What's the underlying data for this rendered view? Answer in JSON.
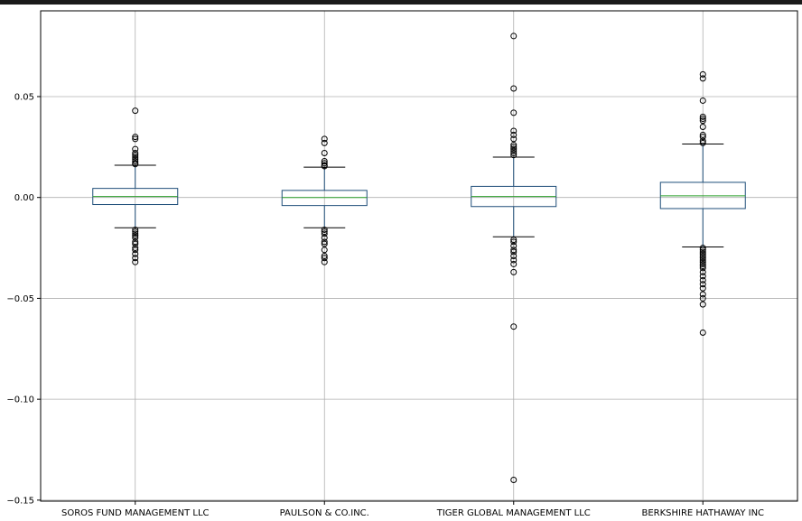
{
  "chart_data": {
    "type": "boxplot",
    "categories": [
      "SOROS FUND MANAGEMENT LLC",
      "PAULSON & CO.INC.",
      "TIGER GLOBAL MANAGEMENT LLC",
      "BERKSHIRE HATHAWAY INC"
    ],
    "y_ticks": [
      {
        "value": 0.05,
        "label": "0.05"
      },
      {
        "value": 0.0,
        "label": "0.00"
      },
      {
        "value": -0.05,
        "label": "−0.05"
      },
      {
        "value": -0.1,
        "label": "−0.10"
      },
      {
        "value": -0.15,
        "label": "−0.15"
      }
    ],
    "ylim": [
      -0.1505,
      0.0925
    ],
    "grid": true,
    "title": "",
    "xlabel": "",
    "ylabel": "",
    "colors": {
      "box": "#1f4e79",
      "median": "#2ca02c",
      "whisker": "#1f4e79",
      "cap": "#000000",
      "flier": "#000000",
      "grid": "#b0b0b0",
      "axes": "#000000",
      "background": "#ffffff"
    },
    "boxes": [
      {
        "name": "SOROS FUND MANAGEMENT LLC",
        "q1": -0.0035,
        "median": 0.0005,
        "q3": 0.0045,
        "whisker_low": -0.015,
        "whisker_high": 0.016,
        "fliers": [
          0.043,
          0.03,
          0.029,
          0.024,
          0.022,
          0.021,
          0.02,
          0.019,
          0.018,
          0.017,
          0.0165,
          -0.016,
          -0.017,
          -0.018,
          -0.019,
          -0.02,
          -0.022,
          -0.023,
          -0.025,
          -0.026,
          -0.028,
          -0.03,
          -0.032
        ]
      },
      {
        "name": "PAULSON & CO.INC.",
        "q1": -0.004,
        "median": 0.0,
        "q3": 0.0035,
        "whisker_low": -0.015,
        "whisker_high": 0.015,
        "fliers": [
          0.029,
          0.027,
          0.022,
          0.018,
          0.017,
          0.016,
          0.0155,
          -0.016,
          -0.017,
          -0.018,
          -0.02,
          -0.022,
          -0.023,
          -0.026,
          -0.029,
          -0.03,
          -0.032
        ]
      },
      {
        "name": "TIGER GLOBAL MANAGEMENT LLC",
        "q1": -0.0045,
        "median": 0.0005,
        "q3": 0.0055,
        "whisker_low": -0.0195,
        "whisker_high": 0.02,
        "fliers": [
          0.08,
          0.054,
          0.042,
          0.033,
          0.031,
          0.029,
          0.026,
          0.025,
          0.024,
          0.023,
          0.022,
          0.021,
          -0.021,
          -0.022,
          -0.024,
          -0.026,
          -0.027,
          -0.029,
          -0.031,
          -0.033,
          -0.037,
          -0.064,
          -0.14
        ]
      },
      {
        "name": "BERKSHIRE HATHAWAY INC",
        "q1": -0.0055,
        "median": 0.0008,
        "q3": 0.0075,
        "whisker_low": -0.0245,
        "whisker_high": 0.0265,
        "fliers": [
          0.061,
          0.059,
          0.048,
          0.04,
          0.039,
          0.038,
          0.035,
          0.031,
          0.03,
          0.028,
          0.027,
          -0.025,
          -0.026,
          -0.027,
          -0.028,
          -0.029,
          -0.03,
          -0.031,
          -0.032,
          -0.033,
          -0.034,
          -0.035,
          -0.037,
          -0.039,
          -0.041,
          -0.043,
          -0.045,
          -0.048,
          -0.05,
          -0.053,
          -0.067
        ]
      }
    ]
  }
}
